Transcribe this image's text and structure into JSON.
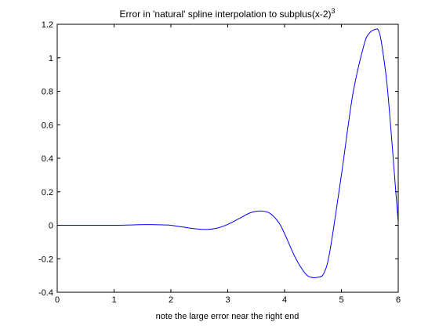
{
  "chart_data": {
    "type": "line",
    "title": "Error in 'natural' spline interpolation to subplus(x-2)",
    "title_superscript": "3",
    "xlabel": "note the large error near the right end",
    "ylabel": "",
    "xlim": [
      0,
      6
    ],
    "ylim": [
      -0.4,
      1.2
    ],
    "x_ticks": [
      0,
      1,
      2,
      3,
      4,
      5,
      6
    ],
    "y_ticks": [
      -0.4,
      -0.2,
      0,
      0.2,
      0.4,
      0.6,
      0.8,
      1,
      1.2
    ],
    "x_tick_labels": [
      "0",
      "1",
      "2",
      "3",
      "4",
      "5",
      "6"
    ],
    "y_tick_labels": [
      "-0.4",
      "-0.2",
      "0",
      "0.2",
      "0.4",
      "0.6",
      "0.8",
      "1",
      "1.2"
    ],
    "grid": false,
    "line_color": "#0000ff",
    "series": [
      {
        "x": [
          0,
          0.5,
          1.0,
          1.2,
          1.4,
          1.6,
          1.8,
          1.9,
          2.0,
          2.2,
          2.4,
          2.6,
          2.8,
          3.0,
          3.2,
          3.4,
          3.6,
          3.75,
          3.9,
          4.0,
          4.2,
          4.4,
          4.6,
          4.7,
          4.8,
          5.0,
          5.2,
          5.4,
          5.5,
          5.6,
          5.65,
          5.7,
          5.8,
          5.9,
          5.95,
          6.0
        ],
        "y": [
          0,
          0,
          0,
          0.001,
          0.003,
          0.004,
          0.003,
          0.002,
          0.0,
          -0.01,
          -0.02,
          -0.025,
          -0.018,
          0.005,
          0.04,
          0.075,
          0.085,
          0.07,
          0.015,
          -0.05,
          -0.2,
          -0.3,
          -0.31,
          -0.28,
          -0.15,
          0.3,
          0.78,
          1.08,
          1.15,
          1.17,
          1.165,
          1.1,
          0.85,
          0.45,
          0.23,
          0.02
        ]
      }
    ]
  }
}
